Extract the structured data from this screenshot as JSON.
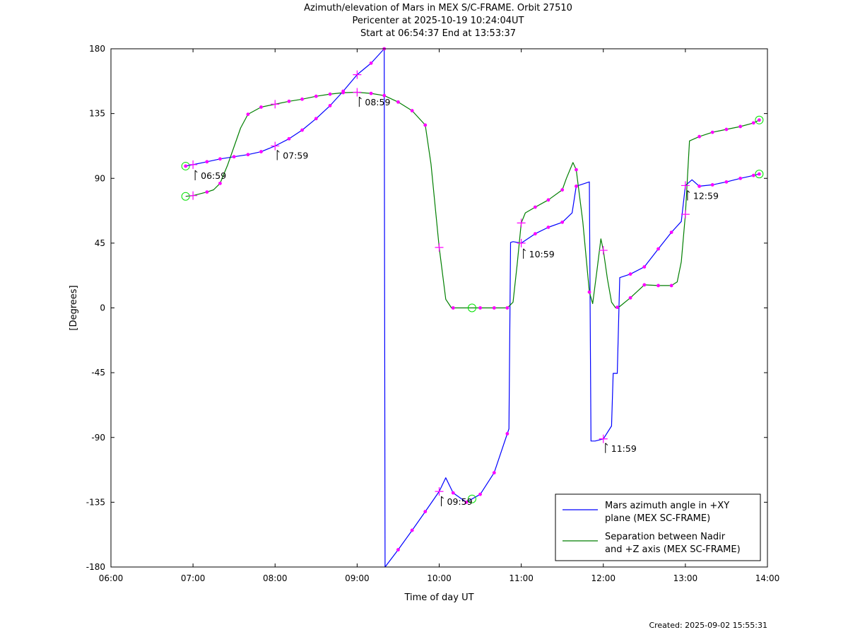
{
  "chart_data": {
    "type": "line",
    "title": [
      "Azimuth/elevation of Mars in MEX S/C-FRAME.  Orbit 27510",
      "Pericenter at 2025-10-19 10:24:04UT",
      "Start at 06:54:37 End at 13:53:37"
    ],
    "xlabel": "Time of day UT",
    "ylabel": "[Degrees]",
    "xlim": [
      6.0,
      14.0
    ],
    "ylim": [
      -180,
      180
    ],
    "x_ticks": [
      "06:00",
      "07:00",
      "08:00",
      "09:00",
      "10:00",
      "11:00",
      "12:00",
      "13:00",
      "14:00"
    ],
    "y_ticks": [
      "180",
      "135",
      "90",
      "45",
      "0",
      "-45",
      "-90",
      "-135",
      "-180"
    ],
    "grid": false,
    "legend_position": "bottom-right",
    "footer": "Created: 2025-09-02 15:55:31",
    "series": [
      {
        "name": "Mars azimuth angle in +XY plane (MEX SC-FRAME)",
        "legend_lines": [
          "Mars azimuth angle in +XY",
          "plane (MEX SC-FRAME)"
        ],
        "color": "#0000ff",
        "x": [
          6.91,
          7.0,
          7.17,
          7.33,
          7.5,
          7.67,
          7.83,
          8.0,
          8.17,
          8.33,
          8.5,
          8.67,
          8.83,
          9.0,
          9.17,
          9.33,
          9.335,
          9.34,
          9.5,
          9.67,
          9.83,
          10.0,
          10.08,
          10.17,
          10.33,
          10.5,
          10.67,
          10.85,
          10.87,
          10.9,
          11.0,
          11.17,
          11.33,
          11.5,
          11.62,
          11.67,
          11.8,
          11.83,
          11.85,
          11.9,
          12.0,
          12.1,
          12.12,
          12.17,
          12.2,
          12.33,
          12.5,
          12.67,
          12.83,
          12.95,
          13.0,
          13.08,
          13.17,
          13.33,
          13.5,
          13.67,
          13.83,
          13.9
        ],
        "y": [
          98.5,
          99.5,
          101.5,
          103.5,
          105.0,
          106.5,
          108.5,
          112.5,
          117.5,
          123.5,
          131.5,
          140.5,
          150.5,
          162.0,
          170.0,
          180.0,
          0.0,
          -180.0,
          -168.0,
          -154.5,
          -141.5,
          -127.5,
          -118.0,
          -128.5,
          -135.0,
          -129.5,
          -114.5,
          -84.0,
          45.5,
          46.0,
          45.0,
          51.5,
          56.0,
          59.5,
          66.0,
          84.5,
          87.0,
          87.5,
          -92.5,
          -92.5,
          -91.0,
          -82.0,
          -45.5,
          -45.5,
          21.0,
          23.5,
          28.5,
          41.0,
          52.5,
          60.0,
          85.0,
          89.0,
          84.5,
          85.5,
          87.5,
          90.0,
          92.0,
          93.0
        ],
        "markers": {
          "dots_x": [
            6.91,
            7.17,
            7.33,
            7.5,
            7.67,
            7.83,
            8.17,
            8.33,
            8.5,
            8.67,
            8.83,
            9.17,
            9.33,
            9.5,
            9.67,
            9.83,
            10.17,
            10.33,
            10.5,
            10.67,
            10.83,
            11.17,
            11.33,
            11.5,
            11.67,
            12.33,
            12.5,
            12.67,
            12.83,
            13.17,
            13.33,
            13.5,
            13.67,
            13.83,
            13.9
          ],
          "plus_x": [
            7.0,
            8.0,
            9.0,
            10.0,
            11.0,
            12.0,
            13.0
          ],
          "circle_x": [
            6.91,
            10.4,
            13.9
          ]
        }
      },
      {
        "name": "Separation between Nadir and +Z axis (MEX SC-FRAME)",
        "legend_lines": [
          "Separation between Nadir",
          "and +Z axis (MEX SC-FRAME)"
        ],
        "color": "#007f00",
        "x": [
          6.91,
          7.0,
          7.17,
          7.25,
          7.33,
          7.42,
          7.5,
          7.58,
          7.67,
          7.83,
          8.0,
          8.17,
          8.33,
          8.5,
          8.67,
          8.83,
          9.0,
          9.17,
          9.33,
          9.5,
          9.67,
          9.83,
          9.9,
          10.0,
          10.08,
          10.15,
          10.17,
          10.33,
          10.5,
          10.67,
          10.83,
          10.9,
          10.95,
          11.0,
          11.05,
          11.17,
          11.33,
          11.5,
          11.55,
          11.63,
          11.67,
          11.75,
          11.83,
          11.87,
          11.92,
          11.97,
          12.0,
          12.05,
          12.1,
          12.15,
          12.2,
          12.33,
          12.5,
          12.67,
          12.83,
          12.9,
          12.95,
          13.0,
          13.05,
          13.17,
          13.33,
          13.5,
          13.67,
          13.83,
          13.9
        ],
        "y": [
          77.5,
          78.0,
          80.5,
          82.0,
          86.5,
          99.0,
          112.0,
          125.0,
          134.5,
          139.5,
          141.5,
          143.5,
          145.0,
          147.0,
          148.5,
          149.5,
          149.8,
          149.0,
          147.5,
          143.0,
          137.0,
          127.0,
          100.0,
          42.0,
          6.0,
          0.0,
          0.0,
          0.0,
          0.0,
          0.0,
          0.0,
          4.0,
          30.0,
          59.0,
          66.0,
          70.0,
          75.0,
          82.0,
          90.0,
          101.0,
          96.0,
          60.0,
          11.0,
          3.0,
          25.0,
          48.0,
          40.0,
          20.0,
          4.0,
          0.0,
          1.0,
          7.0,
          16.0,
          15.5,
          15.5,
          18.0,
          32.0,
          65.0,
          116.0,
          119.0,
          122.0,
          124.0,
          126.0,
          128.5,
          130.5
        ],
        "markers": {
          "dots_x": [
            7.17,
            7.33,
            7.67,
            7.83,
            8.17,
            8.33,
            8.5,
            8.67,
            8.83,
            9.17,
            9.33,
            9.5,
            9.67,
            9.83,
            10.17,
            10.5,
            10.67,
            10.83,
            11.17,
            11.33,
            11.5,
            11.67,
            11.83,
            12.17,
            12.33,
            12.5,
            12.67,
            12.83,
            13.17,
            13.33,
            13.5,
            13.67,
            13.83,
            13.9
          ],
          "plus_x": [
            7.0,
            8.0,
            9.0,
            10.0,
            11.0,
            12.0,
            13.0
          ],
          "circle_x": [
            6.91,
            10.4,
            13.9
          ]
        }
      }
    ],
    "annotations": [
      {
        "text": "06:59",
        "x": 7.0,
        "y": 98.5
      },
      {
        "text": "07:59",
        "x": 8.0,
        "y": 112.5
      },
      {
        "text": "08:59",
        "x": 9.0,
        "y": 149.5
      },
      {
        "text": "09:59",
        "x": 10.0,
        "y": -128.0
      },
      {
        "text": "10:59",
        "x": 11.0,
        "y": 44.0
      },
      {
        "text": "11:59",
        "x": 12.0,
        "y": -91.0
      },
      {
        "text": "12:59",
        "x": 13.0,
        "y": 84.5
      }
    ]
  }
}
